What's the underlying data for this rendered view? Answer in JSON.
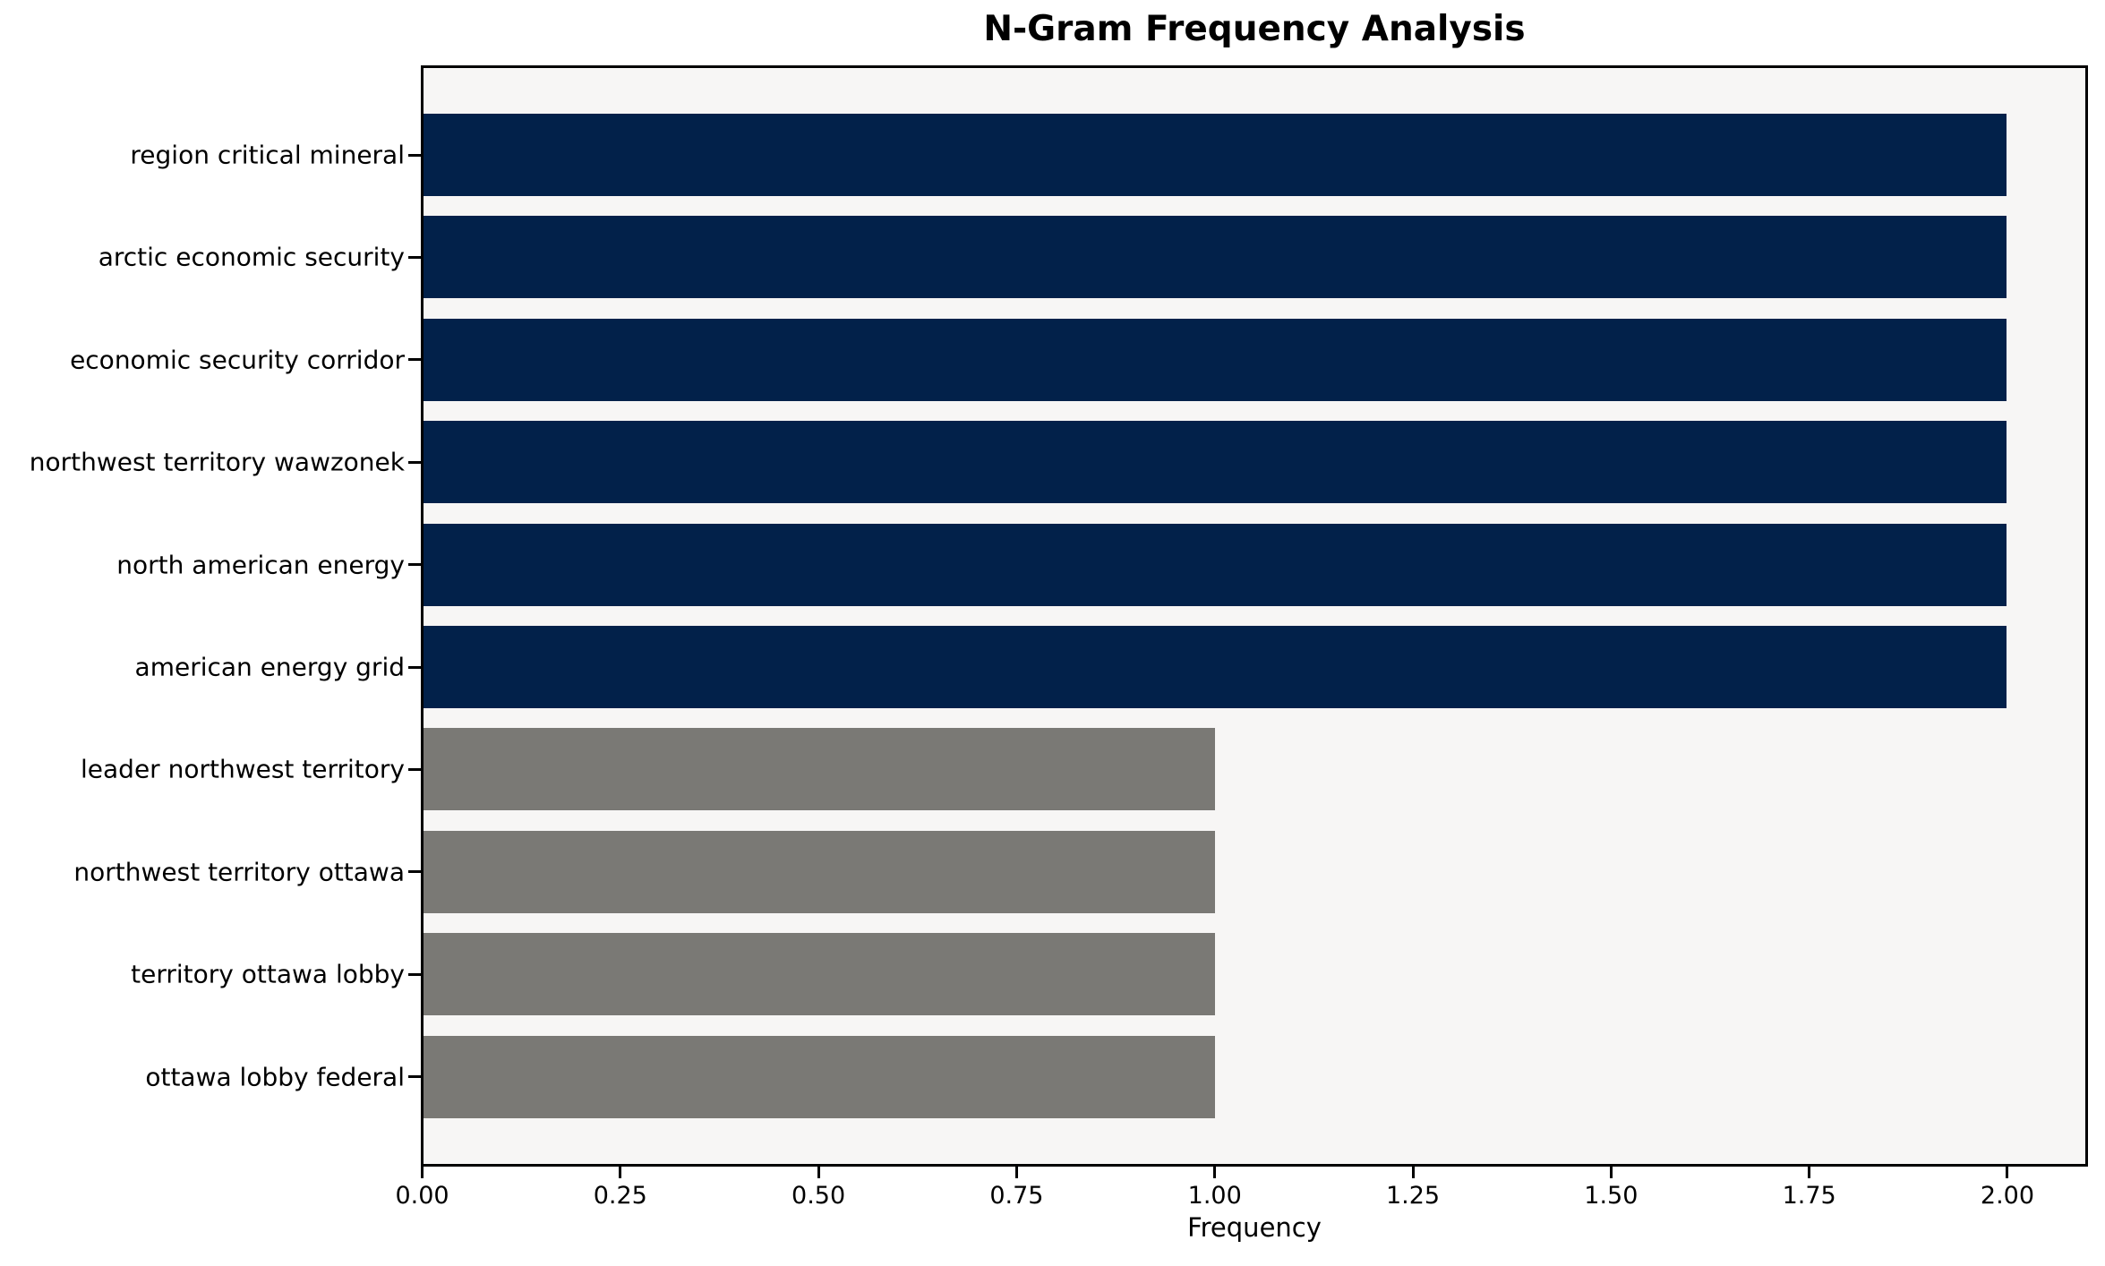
{
  "figure": {
    "title": "N-Gram Frequency Analysis",
    "xlabel": "Frequency"
  },
  "colors": {
    "bar_high": "#02214a",
    "bar_low": "#7a7975",
    "plot_background": "#f7f6f5",
    "figure_background": "#ffffff",
    "spine": "#000000",
    "text": "#000000"
  },
  "chart_data": {
    "type": "bar",
    "orientation": "horizontal",
    "title": "N-Gram Frequency Analysis",
    "xlabel": "Frequency",
    "ylabel": "",
    "grid": false,
    "legend": false,
    "xlim": [
      0,
      2.1
    ],
    "x_ticks": [
      0.0,
      0.25,
      0.5,
      0.75,
      1.0,
      1.25,
      1.5,
      1.75,
      2.0
    ],
    "x_tick_labels": [
      "0.00",
      "0.25",
      "0.50",
      "0.75",
      "1.00",
      "1.25",
      "1.50",
      "1.75",
      "2.00"
    ],
    "categories": [
      "region critical mineral",
      "arctic economic security",
      "economic security corridor",
      "northwest territory wawzonek",
      "north american energy",
      "american energy grid",
      "leader northwest territory",
      "northwest territory ottawa",
      "territory ottawa lobby",
      "ottawa lobby federal"
    ],
    "values": [
      2,
      2,
      2,
      2,
      2,
      2,
      1,
      1,
      1,
      1
    ],
    "bar_colors": [
      "#02214a",
      "#02214a",
      "#02214a",
      "#02214a",
      "#02214a",
      "#02214a",
      "#7a7975",
      "#7a7975",
      "#7a7975",
      "#7a7975"
    ]
  }
}
